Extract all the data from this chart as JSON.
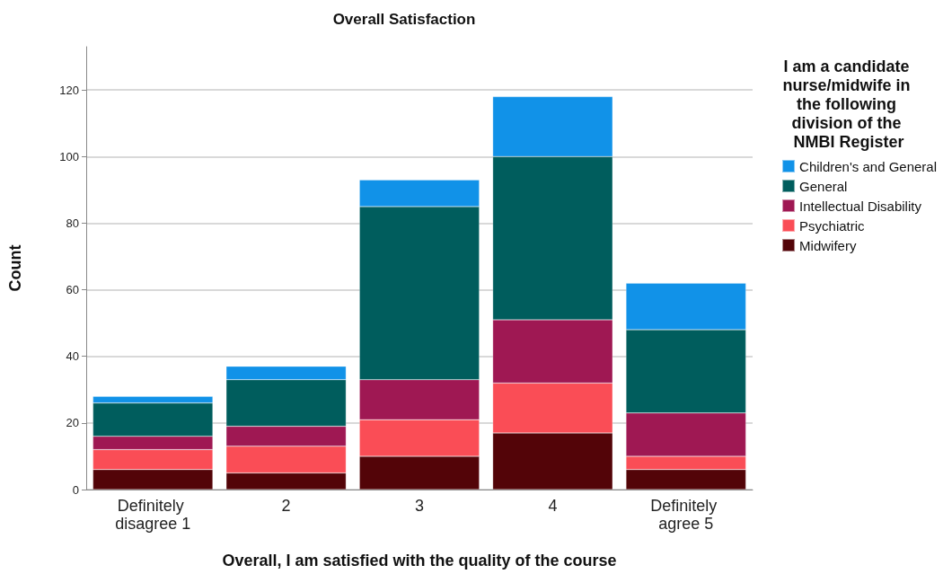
{
  "chart_data": {
    "type": "bar",
    "title": "Overall Satisfaction",
    "xlabel": "Overall, I am satisfied with the quality of the course",
    "ylabel": "Count",
    "legend_title": "I am a candidate nurse/midwife in the following division of the NMBI Register",
    "categories": [
      "Definitely disagree 1",
      "2",
      "3",
      "4",
      "Definitely agree 5"
    ],
    "stacked": true,
    "ylim": [
      0,
      133
    ],
    "yticks": [
      0,
      20,
      40,
      60,
      80,
      100,
      120
    ],
    "grid": "y",
    "legend": "right",
    "series": [
      {
        "name": "Midwifery",
        "color": "#530408",
        "values": [
          6,
          5,
          10,
          17,
          6
        ]
      },
      {
        "name": "Psychiatric",
        "color": "#fa4d56",
        "values": [
          6,
          8,
          11,
          15,
          4
        ]
      },
      {
        "name": "Intellectual Disability",
        "color": "#9f1853",
        "values": [
          4,
          6,
          12,
          19,
          13
        ]
      },
      {
        "name": "General",
        "color": "#005d5d",
        "values": [
          10,
          14,
          52,
          49,
          25
        ]
      },
      {
        "name": "Children's and General",
        "color": "#1192e8",
        "values": [
          2,
          4,
          8,
          18,
          14
        ]
      }
    ]
  }
}
